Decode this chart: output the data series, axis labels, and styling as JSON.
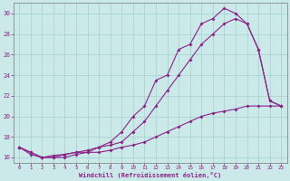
{
  "xlabel": "Windchill (Refroidissement éolien,°C)",
  "xlim": [
    -0.5,
    23.5
  ],
  "ylim": [
    15.5,
    31.0
  ],
  "xticks": [
    0,
    1,
    2,
    3,
    4,
    5,
    6,
    7,
    8,
    9,
    10,
    11,
    12,
    13,
    14,
    15,
    16,
    17,
    18,
    19,
    20,
    21,
    22,
    23
  ],
  "yticks": [
    16,
    18,
    20,
    22,
    24,
    26,
    28,
    30
  ],
  "bg_color": "#cce9e9",
  "grid_color": "#aad4d4",
  "line_color": "#882288",
  "line1_x": [
    0,
    1,
    2,
    3,
    4,
    5,
    6,
    7,
    8,
    9,
    10,
    11,
    12,
    13,
    14,
    15,
    16,
    17,
    18,
    19,
    20,
    21,
    22,
    23
  ],
  "line1_y": [
    17.0,
    16.5,
    16.0,
    16.0,
    16.3,
    16.5,
    16.5,
    17.0,
    17.2,
    17.5,
    18.5,
    19.5,
    21.0,
    22.5,
    24.0,
    25.5,
    27.0,
    28.0,
    29.0,
    29.5,
    29.0,
    26.5,
    21.5,
    21.0
  ],
  "line2_x": [
    0,
    1,
    2,
    3,
    4,
    5,
    6,
    7,
    8,
    9,
    10,
    11,
    12,
    13,
    14,
    15,
    16,
    17,
    18,
    19,
    20,
    21,
    22,
    23
  ],
  "line2_y": [
    17.0,
    16.3,
    16.0,
    16.2,
    16.3,
    16.5,
    16.7,
    17.0,
    17.5,
    18.5,
    20.0,
    21.0,
    23.5,
    24.0,
    26.5,
    27.0,
    29.0,
    29.5,
    30.5,
    30.0,
    29.0,
    26.5,
    21.5,
    21.0
  ],
  "line3_x": [
    0,
    1,
    2,
    3,
    4,
    5,
    6,
    7,
    8,
    9,
    10,
    11,
    12,
    13,
    14,
    15,
    16,
    17,
    18,
    19,
    20,
    21,
    22,
    23
  ],
  "line3_y": [
    17.0,
    16.5,
    16.0,
    16.0,
    16.0,
    16.3,
    16.5,
    16.5,
    16.7,
    17.0,
    17.2,
    17.5,
    18.0,
    18.5,
    19.0,
    19.5,
    20.0,
    20.3,
    20.5,
    20.7,
    21.0,
    21.0,
    21.0,
    21.0
  ]
}
